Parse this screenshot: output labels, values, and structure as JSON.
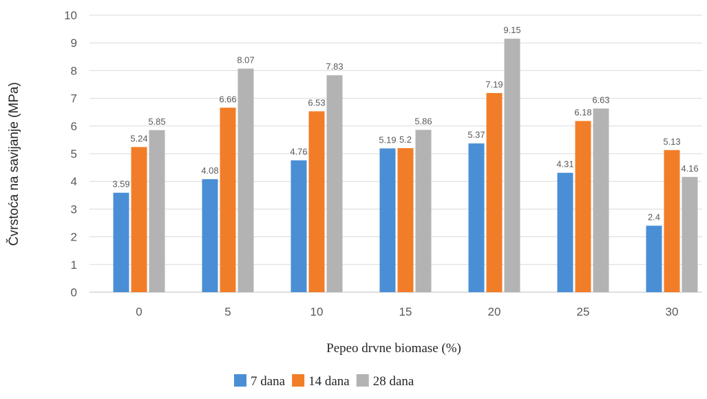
{
  "chart_data": {
    "type": "bar",
    "title": "",
    "xlabel": "Pepeo drvne biomase (%)",
    "ylabel": "Čvrstoća na savijanje (MPa)",
    "ylim": [
      0,
      10
    ],
    "yticks": [
      "0",
      "1",
      "2",
      "3",
      "4",
      "5",
      "6",
      "7",
      "8",
      "9",
      "10"
    ],
    "grid": true,
    "legend_position": "bottom",
    "categories": [
      "0",
      "5",
      "10",
      "15",
      "20",
      "25",
      "30"
    ],
    "series": [
      {
        "name": "7 dana",
        "color": "#4a8fd6",
        "values": [
          3.59,
          4.08,
          4.76,
          5.19,
          5.37,
          4.31,
          2.4
        ],
        "labels": [
          "3.59",
          "4.08",
          "4.76",
          "5.19",
          "5.37",
          "4.31",
          "2.4"
        ]
      },
      {
        "name": "14 dana",
        "color": "#f27d28",
        "values": [
          5.24,
          6.66,
          6.53,
          5.2,
          7.19,
          6.18,
          5.13
        ],
        "labels": [
          "5.24",
          "6.66",
          "6.53",
          "5.2",
          "7.19",
          "6.18",
          "5.13"
        ]
      },
      {
        "name": "28 dana",
        "color": "#b3b3b3",
        "values": [
          5.85,
          8.07,
          7.83,
          5.86,
          9.15,
          6.63,
          4.16
        ],
        "labels": [
          "5.85",
          "8.07",
          "7.83",
          "5.86",
          "9.15",
          "6.63",
          "4.16"
        ]
      }
    ]
  }
}
